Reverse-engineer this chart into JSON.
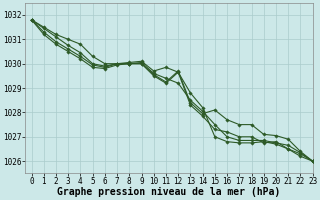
{
  "background_color": "#cce8e8",
  "grid_color": "#aacccc",
  "line_color": "#2d5a27",
  "marker_color": "#2d5a27",
  "xlabel": "Graphe pression niveau de la mer (hPa)",
  "xlabel_fontsize": 7,
  "tick_fontsize": 5.5,
  "xlim": [
    -0.5,
    23
  ],
  "ylim": [
    1025.5,
    1032.5
  ],
  "yticks": [
    1026,
    1027,
    1028,
    1029,
    1030,
    1031,
    1032
  ],
  "xticks": [
    0,
    1,
    2,
    3,
    4,
    5,
    6,
    7,
    8,
    9,
    10,
    11,
    12,
    13,
    14,
    15,
    16,
    17,
    18,
    19,
    20,
    21,
    22,
    23
  ],
  "series": [
    {
      "x": [
        0,
        1,
        2,
        3,
        4,
        5,
        6,
        7,
        8,
        9,
        10,
        11,
        12,
        13,
        14,
        15,
        16,
        17,
        18,
        19,
        20,
        21,
        22,
        23
      ],
      "y": [
        1031.8,
        1031.5,
        1031.2,
        1031.0,
        1030.8,
        1030.3,
        1030.0,
        1030.0,
        1030.05,
        1030.1,
        1029.7,
        1029.85,
        1029.65,
        1028.8,
        1028.2,
        1027.0,
        1026.8,
        1026.75,
        1026.75,
        1026.8,
        1026.7,
        1026.5,
        1026.2,
        1026.0
      ]
    },
    {
      "x": [
        0,
        1,
        2,
        3,
        4,
        5,
        6,
        7,
        8,
        9,
        10,
        11,
        12,
        13,
        14,
        15,
        16,
        17,
        18,
        19,
        20,
        21,
        22,
        23
      ],
      "y": [
        1031.8,
        1031.45,
        1031.1,
        1030.75,
        1030.45,
        1030.0,
        1029.9,
        1030.0,
        1030.0,
        1030.05,
        1029.6,
        1029.4,
        1029.2,
        1028.5,
        1028.05,
        1027.5,
        1027.0,
        1026.85,
        1026.85,
        1026.85,
        1026.75,
        1026.65,
        1026.35,
        1026.0
      ]
    },
    {
      "x": [
        0,
        1,
        2,
        3,
        4,
        5,
        6,
        7,
        8,
        9,
        10,
        11,
        12,
        13,
        14,
        15,
        16,
        17,
        18,
        19,
        20,
        21,
        22,
        23
      ],
      "y": [
        1031.8,
        1031.3,
        1030.9,
        1030.6,
        1030.3,
        1029.95,
        1029.85,
        1030.0,
        1030.0,
        1030.0,
        1029.55,
        1029.25,
        1029.7,
        1028.4,
        1027.95,
        1028.1,
        1027.7,
        1027.5,
        1027.5,
        1027.1,
        1027.05,
        1026.9,
        1026.4,
        1026.0
      ]
    },
    {
      "x": [
        0,
        1,
        2,
        3,
        4,
        5,
        6,
        7,
        8,
        9,
        10,
        11,
        12,
        13,
        14,
        15,
        16,
        17,
        18,
        19,
        20,
        21,
        22,
        23
      ],
      "y": [
        1031.8,
        1031.2,
        1030.8,
        1030.5,
        1030.2,
        1029.85,
        1029.8,
        1029.95,
        1030.0,
        1030.0,
        1029.5,
        1029.2,
        1029.65,
        1028.3,
        1027.85,
        1027.3,
        1027.2,
        1027.0,
        1027.0,
        1026.75,
        1026.8,
        1026.5,
        1026.3,
        1026.0
      ]
    }
  ]
}
